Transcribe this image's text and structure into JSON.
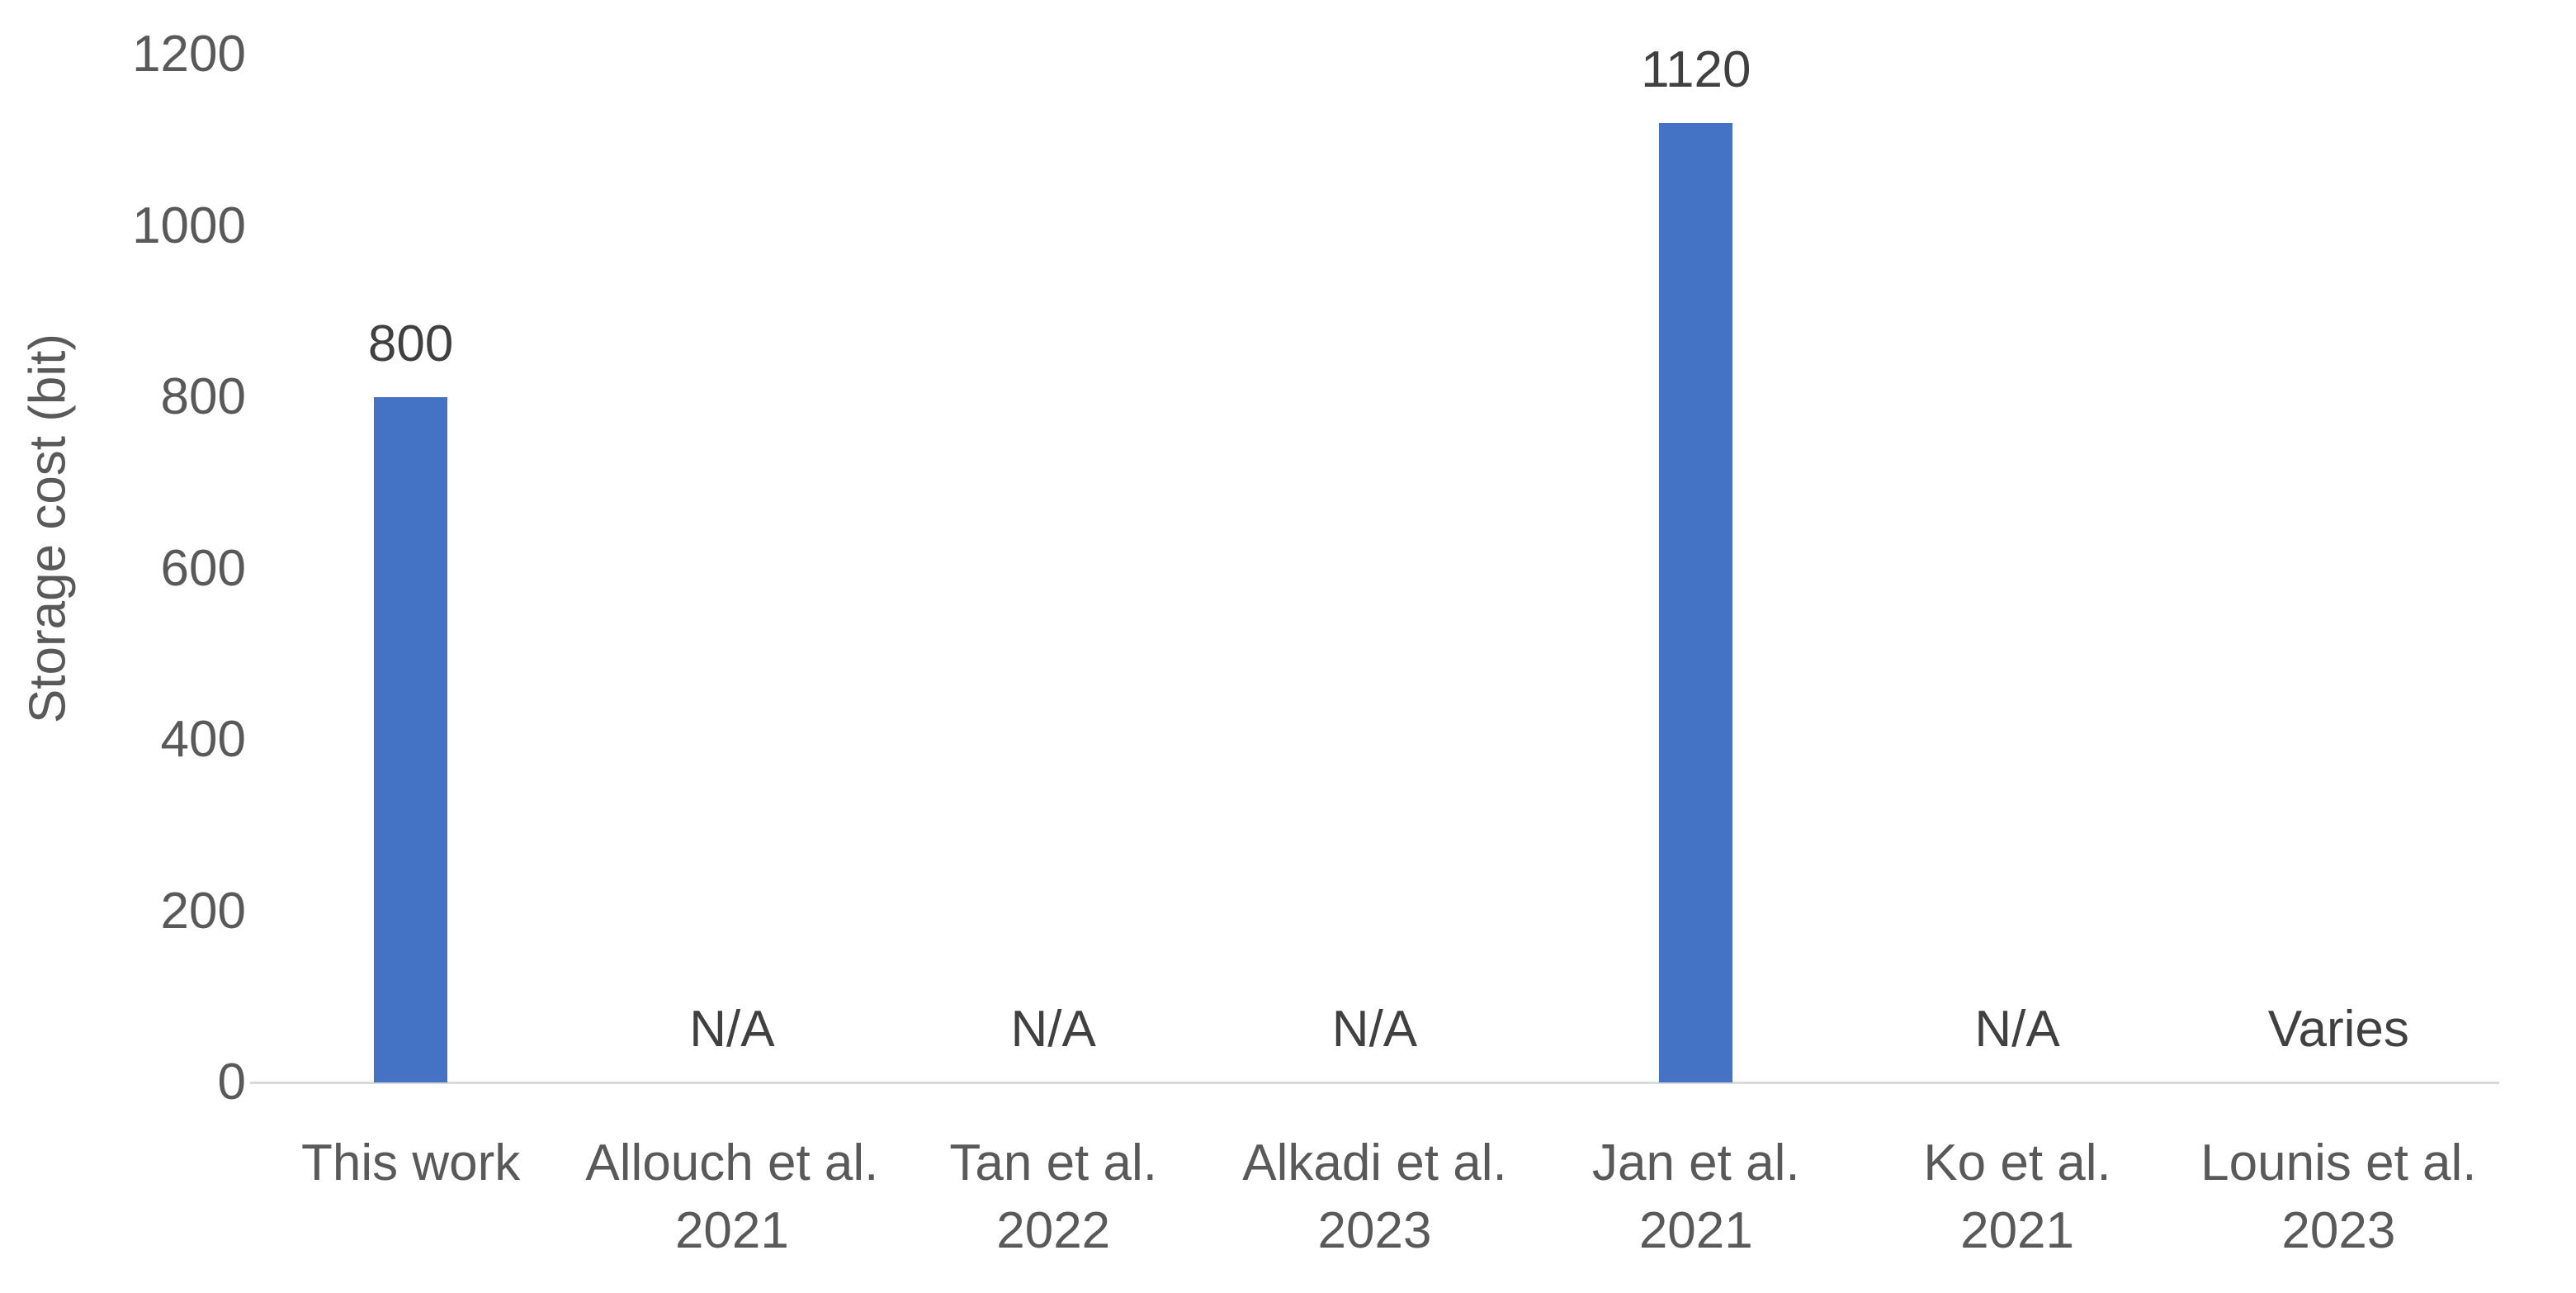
{
  "chart_data": {
    "type": "bar",
    "title": "",
    "ylabel": "Storage cost (bit)",
    "xlabel": "",
    "categories": [
      "This work",
      "Allouch et al.\n2021",
      "Tan et al.\n2022",
      "Alkadi et al.\n2023",
      "Jan et al.\n2021",
      "Ko et al.\n2021",
      "Lounis et al.\n2023"
    ],
    "values": [
      800,
      null,
      null,
      null,
      1120,
      null,
      null
    ],
    "data_labels": [
      "800",
      "N/A",
      "N/A",
      "N/A",
      "1120",
      "N/A",
      "Varies"
    ],
    "yticks": [
      0,
      200,
      400,
      600,
      800,
      1000,
      1200
    ],
    "ylim": [
      0,
      1200
    ],
    "grid": false,
    "legend": "none",
    "bar_color": "#4472C4"
  },
  "colors": {
    "bar": "#4472C4",
    "axis_text": "#595959",
    "data_label_text": "#404040",
    "axis_line": "#D9D9D9",
    "background": "#FFFFFF"
  }
}
